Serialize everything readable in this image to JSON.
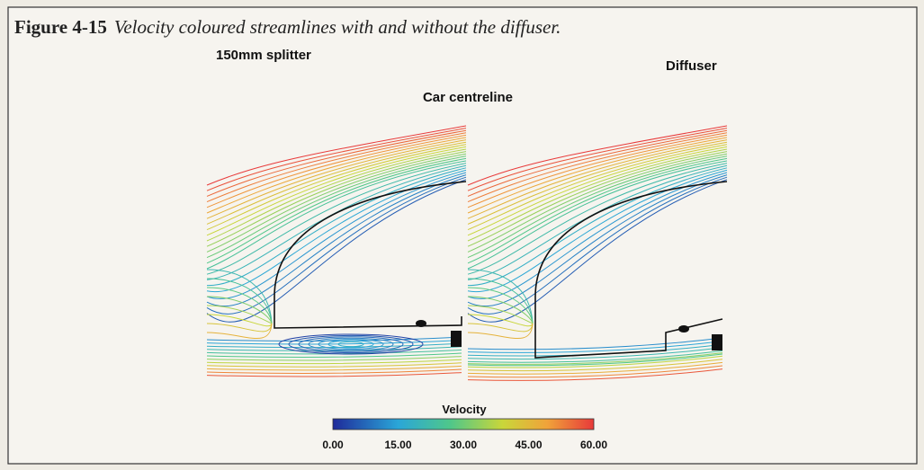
{
  "figure": {
    "label": "Figure 4-15",
    "caption": "Velocity coloured streamlines with and without the diffuser.",
    "panels": [
      "150mm splitter",
      "Diffuser"
    ],
    "subtitle": "Car centreline",
    "legend": {
      "title": "Velocity",
      "ticks": [
        "0.00",
        "15.00",
        "30.00",
        "45.00",
        "60.00"
      ]
    }
  }
}
